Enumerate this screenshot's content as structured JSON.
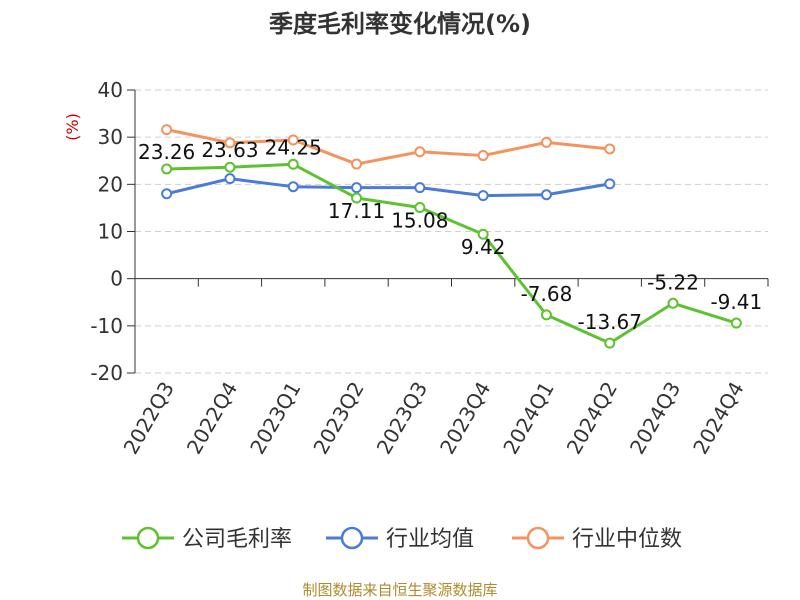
{
  "chart_data": {
    "type": "line",
    "title": "季度毛利率变化情况(%)",
    "ylabel": "(%)",
    "source": "制图数据来自恒生聚源数据库",
    "categories": [
      "2022Q3",
      "2022Q4",
      "2023Q1",
      "2023Q2",
      "2023Q3",
      "2023Q4",
      "2024Q1",
      "2024Q2",
      "2024Q3",
      "2024Q4"
    ],
    "ylim": [
      -20,
      40
    ],
    "yticks": [
      40,
      30,
      20,
      10,
      0,
      -10,
      -20
    ],
    "grid": true,
    "legend_position": "bottom",
    "series": [
      {
        "name": "公司毛利率",
        "color": "#5ec230",
        "values": [
          23.26,
          23.63,
          24.25,
          17.11,
          15.08,
          9.42,
          -7.68,
          -13.67,
          -5.22,
          -9.41
        ],
        "labels": [
          "23.26",
          "23.63",
          "24.25",
          "17.11",
          "15.08",
          "9.42",
          "-7.68",
          "-13.67",
          "-5.22",
          "-9.41"
        ]
      },
      {
        "name": "行业均值",
        "color": "#4a7bd6",
        "values": [
          18.0,
          21.2,
          19.5,
          19.3,
          19.3,
          17.6,
          17.8,
          20.1,
          null,
          null
        ]
      },
      {
        "name": "行业中位数",
        "color": "#f4935c",
        "values": [
          31.6,
          28.8,
          29.4,
          24.3,
          26.9,
          26.1,
          28.9,
          27.5,
          null,
          null
        ]
      }
    ]
  }
}
